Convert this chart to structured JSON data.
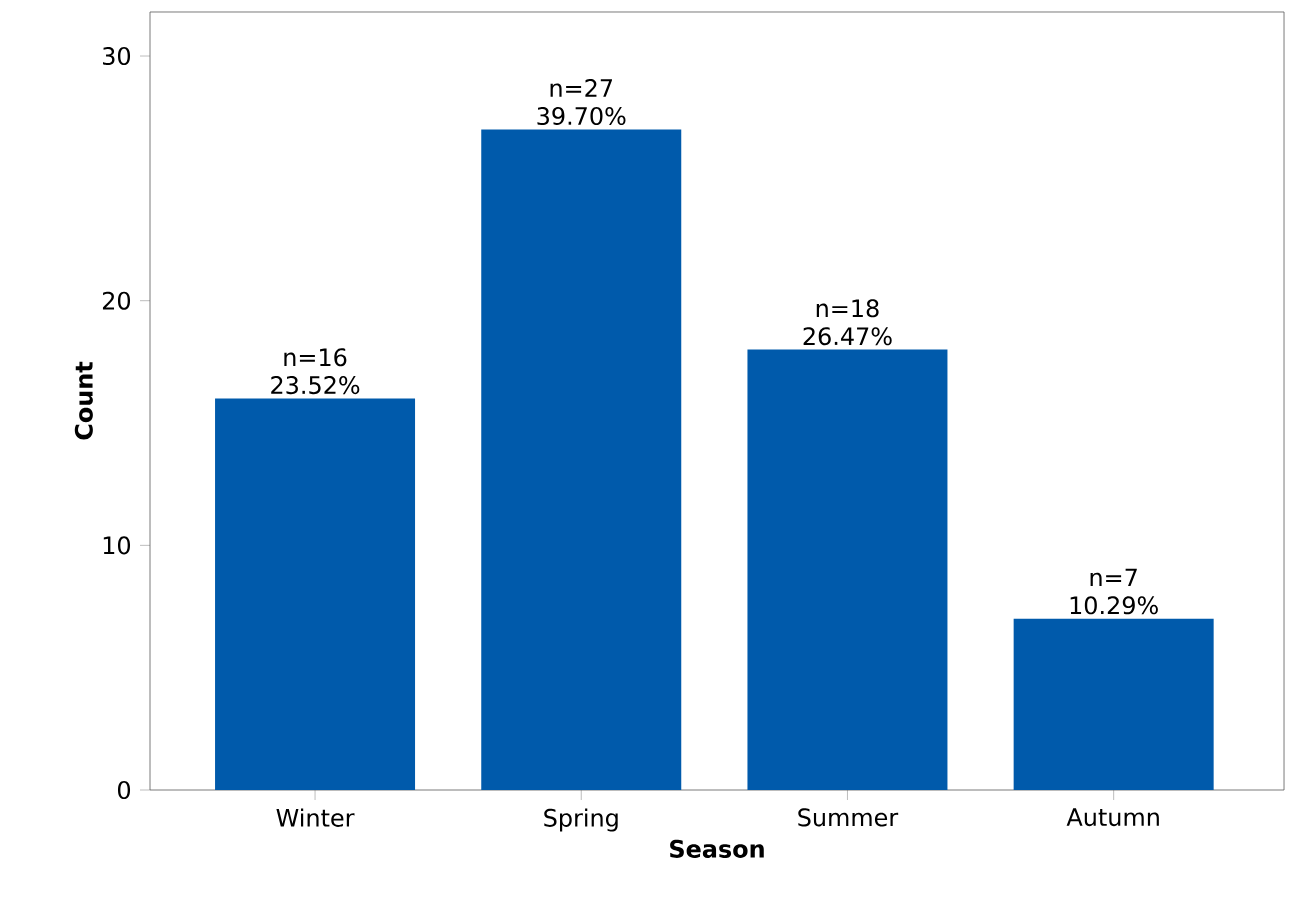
{
  "chart_data": {
    "type": "bar",
    "xlabel": "Season",
    "ylabel": "Count",
    "categories": [
      "Winter",
      "Spring",
      "Summer",
      "Autumn"
    ],
    "values": [
      16,
      27,
      18,
      7
    ],
    "value_labels": [
      "n=16 23.52%",
      "n=27 39.70%",
      "n=18 26.47%",
      "n=7 10.29%"
    ],
    "color": "#005aab",
    "ylim": [
      0,
      31.8
    ],
    "yticks": [
      0,
      10,
      20,
      30
    ],
    "grid": false
  }
}
